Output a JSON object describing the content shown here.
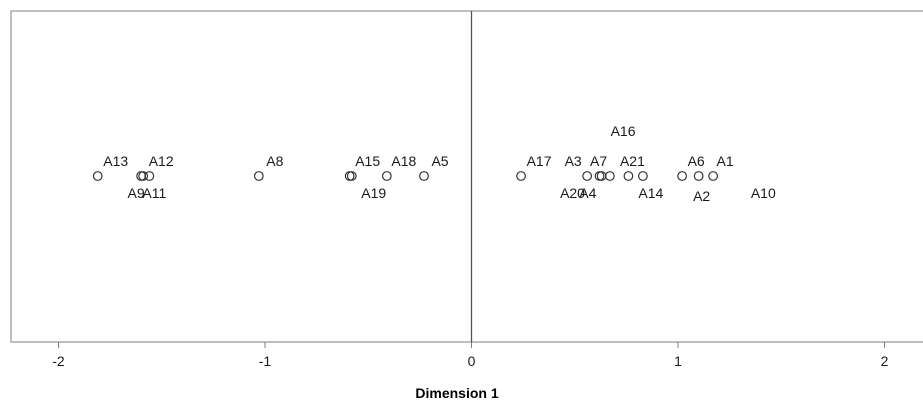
{
  "chart_data": {
    "type": "scatter",
    "title": "",
    "xlabel": "Dimension 1",
    "ylabel": "",
    "xlim": [
      -2.25,
      2.2
    ],
    "xticks": [
      -2,
      -1,
      0,
      1,
      2
    ],
    "grid": false,
    "reference_line_x": 0,
    "colors": {
      "frame": "#7f7f7f",
      "marker": "#333333",
      "zero_line": "#555555",
      "text": "#1a1a1a"
    },
    "points": [
      {
        "label": "A13",
        "x": -1.81
      },
      {
        "label": "A9",
        "x": -1.6
      },
      {
        "label": "A12",
        "x": -1.59
      },
      {
        "label": "A11",
        "x": -1.56
      },
      {
        "label": "A8",
        "x": -1.03
      },
      {
        "label": "A15",
        "x": -0.59
      },
      {
        "label": "A19",
        "x": -0.58
      },
      {
        "label": "A18",
        "x": -0.41
      },
      {
        "label": "A5",
        "x": -0.23
      },
      {
        "label": "A17",
        "x": 0.24
      },
      {
        "label": "A3",
        "x": 0.56
      },
      {
        "label": "A20",
        "x": 0.62
      },
      {
        "label": "A7",
        "x": 0.63
      },
      {
        "label": "A4",
        "x": 0.67
      },
      {
        "label": "A16",
        "x": 0.7
      },
      {
        "label": "A21",
        "x": 0.76
      },
      {
        "label": "A14",
        "x": 0.83
      },
      {
        "label": "A6",
        "x": 1.02
      },
      {
        "label": "A2",
        "x": 1.1
      },
      {
        "label": "A1",
        "x": 1.17
      },
      {
        "label": "A10",
        "x": 1.2
      }
    ]
  }
}
